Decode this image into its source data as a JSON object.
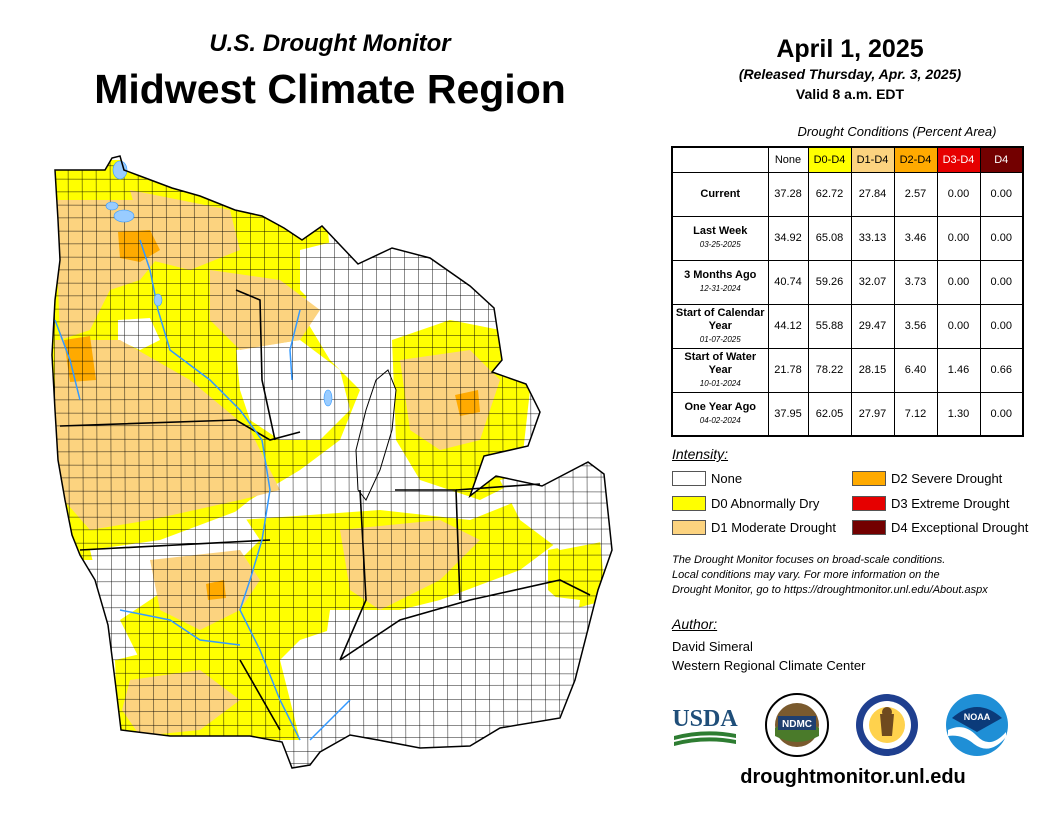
{
  "header": {
    "subtitle": "U.S. Drought Monitor",
    "title": "Midwest Climate Region"
  },
  "date": {
    "main": "April 1, 2025",
    "released": "(Released Thursday, Apr. 3, 2025)",
    "valid": "Valid 8 a.m. EDT"
  },
  "table": {
    "caption": "Drought Conditions (Percent Area)",
    "columns": [
      {
        "label": "None",
        "color": "#ffffff",
        "text": "#000000"
      },
      {
        "label": "D0-D4",
        "color": "#ffff00",
        "text": "#000000"
      },
      {
        "label": "D1-D4",
        "color": "#fcd37f",
        "text": "#000000"
      },
      {
        "label": "D2-D4",
        "color": "#ffaa00",
        "text": "#000000"
      },
      {
        "label": "D3-D4",
        "color": "#e60000",
        "text": "#ffffff"
      },
      {
        "label": "D4",
        "color": "#730000",
        "text": "#ffffff"
      }
    ],
    "rows": [
      {
        "label": "Current",
        "date": "",
        "values": [
          "37.28",
          "62.72",
          "27.84",
          "2.57",
          "0.00",
          "0.00"
        ]
      },
      {
        "label": "Last Week",
        "date": "03-25-2025",
        "values": [
          "34.92",
          "65.08",
          "33.13",
          "3.46",
          "0.00",
          "0.00"
        ]
      },
      {
        "label": "3 Months Ago",
        "date": "12-31-2024",
        "values": [
          "40.74",
          "59.26",
          "32.07",
          "3.73",
          "0.00",
          "0.00"
        ]
      },
      {
        "label": "Start of Calendar Year",
        "date": "01-07-2025",
        "values": [
          "44.12",
          "55.88",
          "29.47",
          "3.56",
          "0.00",
          "0.00"
        ]
      },
      {
        "label": "Start of Water Year",
        "date": "10-01-2024",
        "values": [
          "21.78",
          "78.22",
          "28.15",
          "6.40",
          "1.46",
          "0.66"
        ]
      },
      {
        "label": "One Year Ago",
        "date": "04-02-2024",
        "values": [
          "37.95",
          "62.05",
          "27.97",
          "7.12",
          "1.30",
          "0.00"
        ]
      }
    ]
  },
  "legend": {
    "title": "Intensity:",
    "items": [
      {
        "label": "None",
        "color": "#ffffff"
      },
      {
        "label": "D0 Abnormally Dry",
        "color": "#ffff00"
      },
      {
        "label": "D1 Moderate Drought",
        "color": "#fcd37f"
      },
      {
        "label": "D2 Severe Drought",
        "color": "#ffaa00"
      },
      {
        "label": "D3 Extreme Drought",
        "color": "#e60000"
      },
      {
        "label": "D4 Exceptional Drought",
        "color": "#730000"
      }
    ]
  },
  "note": {
    "line1": "The Drought Monitor focuses on broad-scale conditions.",
    "line2": "Local conditions may vary. For more information on the",
    "line3": "Drought Monitor, go to https://droughtmonitor.unl.edu/About.aspx"
  },
  "author": {
    "label": "Author:",
    "name": "David Simeral",
    "org": "Western Regional Climate Center"
  },
  "logos": {
    "usda": "USDA",
    "ndmc": "NDMC",
    "noaa": "NOAA"
  },
  "url": "droughtmonitor.unl.edu",
  "map_colors": {
    "none": "#ffffff",
    "d0": "#ffff00",
    "d1": "#fcd37f",
    "d2": "#ffaa00",
    "water": "#99ccff",
    "river": "#3399ff",
    "county": "#000000"
  }
}
